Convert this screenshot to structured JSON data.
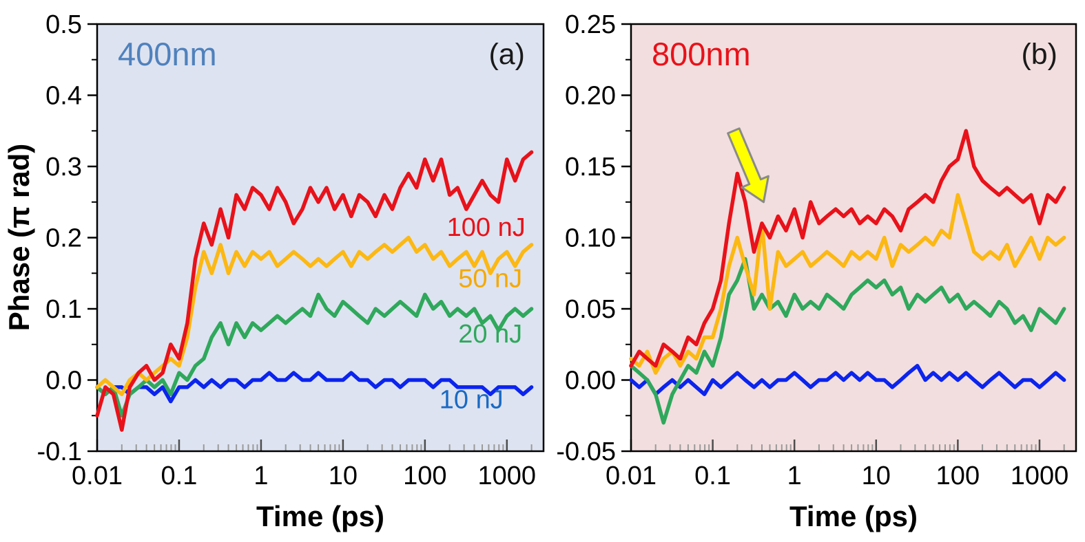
{
  "chart_data": [
    {
      "type": "line",
      "panel": "a",
      "title": "400nm",
      "title_color": "#4f81bd",
      "panel_tag": "(a)",
      "xlabel": "Time (ps)",
      "ylabel": "Phase (π rad)",
      "x_scale": "log",
      "grid": false,
      "background": "#dde3f0",
      "xlim": [
        0.01,
        2800
      ],
      "ylim": [
        -0.1,
        0.5
      ],
      "x_ticks": [
        0.01,
        0.1,
        1,
        10,
        100,
        1000
      ],
      "x_tick_labels": [
        "0.01",
        "0.1",
        "1",
        "10",
        "100",
        "1000"
      ],
      "y_ticks": [
        -0.1,
        0.0,
        0.1,
        0.2,
        0.3,
        0.4,
        0.5
      ],
      "y_tick_labels": [
        "-0.1",
        "0.0",
        "0.1",
        "0.2",
        "0.3",
        "0.4",
        "0.5"
      ],
      "y_minor_step": 0.05,
      "x": [
        0.01,
        0.0126,
        0.0158,
        0.02,
        0.025,
        0.032,
        0.04,
        0.05,
        0.063,
        0.079,
        0.1,
        0.126,
        0.158,
        0.2,
        0.25,
        0.32,
        0.4,
        0.5,
        0.63,
        0.79,
        1,
        1.26,
        1.58,
        2,
        2.5,
        3.2,
        4,
        5,
        6.3,
        7.9,
        10,
        12.6,
        15.8,
        20,
        25,
        32,
        40,
        50,
        63,
        79,
        100,
        126,
        158,
        200,
        250,
        320,
        400,
        500,
        630,
        790,
        1000,
        1260,
        1580,
        2000
      ],
      "series": [
        {
          "name": "10 nJ",
          "color": "#0b24ee",
          "values": [
            -0.01,
            -0.02,
            -0.01,
            -0.01,
            -0.02,
            -0.01,
            -0.01,
            -0.02,
            -0.01,
            -0.03,
            -0.01,
            -0.01,
            0.0,
            -0.01,
            0.0,
            -0.01,
            0.0,
            0.0,
            -0.01,
            0.0,
            0.0,
            0.01,
            0.0,
            0.0,
            0.01,
            0.0,
            0.0,
            0.01,
            0.0,
            0.0,
            0.0,
            0.01,
            0.0,
            0.0,
            -0.01,
            0.0,
            0.0,
            -0.01,
            0.0,
            0.0,
            0.0,
            -0.01,
            0.0,
            0.0,
            -0.01,
            -0.01,
            -0.01,
            -0.01,
            -0.02,
            -0.01,
            -0.01,
            -0.01,
            -0.02,
            -0.01
          ]
        },
        {
          "name": "20 nJ",
          "color": "#2fa85c",
          "values": [
            -0.01,
            -0.02,
            -0.01,
            -0.05,
            -0.02,
            -0.01,
            0.0,
            -0.01,
            0.0,
            -0.02,
            0.01,
            0.0,
            0.02,
            0.03,
            0.06,
            0.08,
            0.05,
            0.08,
            0.06,
            0.08,
            0.07,
            0.08,
            0.09,
            0.08,
            0.09,
            0.1,
            0.09,
            0.12,
            0.1,
            0.09,
            0.11,
            0.1,
            0.09,
            0.08,
            0.1,
            0.09,
            0.1,
            0.11,
            0.1,
            0.09,
            0.12,
            0.1,
            0.11,
            0.09,
            0.1,
            0.09,
            0.1,
            0.08,
            0.09,
            0.07,
            0.09,
            0.1,
            0.09,
            0.1
          ]
        },
        {
          "name": "50 nJ",
          "color": "#fcb813",
          "values": [
            -0.01,
            0.0,
            -0.01,
            -0.02,
            0.0,
            0.01,
            0.0,
            0.01,
            0.02,
            0.03,
            0.02,
            0.06,
            0.13,
            0.18,
            0.15,
            0.19,
            0.15,
            0.18,
            0.16,
            0.18,
            0.17,
            0.18,
            0.16,
            0.17,
            0.18,
            0.17,
            0.16,
            0.17,
            0.16,
            0.17,
            0.18,
            0.16,
            0.18,
            0.17,
            0.18,
            0.19,
            0.18,
            0.19,
            0.2,
            0.18,
            0.19,
            0.17,
            0.18,
            0.16,
            0.17,
            0.18,
            0.16,
            0.18,
            0.15,
            0.17,
            0.18,
            0.16,
            0.18,
            0.19
          ]
        },
        {
          "name": "100 nJ",
          "color": "#e8121a",
          "values": [
            -0.05,
            -0.01,
            -0.02,
            -0.07,
            -0.01,
            0.01,
            0.02,
            0.0,
            0.01,
            0.05,
            0.03,
            0.08,
            0.17,
            0.22,
            0.19,
            0.24,
            0.2,
            0.26,
            0.24,
            0.27,
            0.26,
            0.24,
            0.27,
            0.25,
            0.22,
            0.24,
            0.27,
            0.25,
            0.27,
            0.24,
            0.26,
            0.23,
            0.26,
            0.25,
            0.23,
            0.26,
            0.24,
            0.27,
            0.29,
            0.27,
            0.31,
            0.28,
            0.31,
            0.26,
            0.27,
            0.24,
            0.26,
            0.28,
            0.26,
            0.25,
            0.31,
            0.28,
            0.31,
            0.32
          ]
        }
      ],
      "labels": [
        {
          "text": "100 nJ",
          "color": "#e8121a",
          "x": 185,
          "y": 0.215
        },
        {
          "text": "50 nJ",
          "color": "#f5a800",
          "x": 255,
          "y": 0.143
        },
        {
          "text": "20 nJ",
          "color": "#2fa85c",
          "x": 255,
          "y": 0.065
        },
        {
          "text": "10 nJ",
          "color": "#1a6ac4",
          "x": 150,
          "y": -0.027
        }
      ],
      "annotations": []
    },
    {
      "type": "line",
      "panel": "b",
      "title": "800nm",
      "title_color": "#e8121a",
      "panel_tag": "(b)",
      "xlabel": "Time (ps)",
      "ylabel": "",
      "x_scale": "log",
      "grid": false,
      "background": "#f2dede",
      "xlim": [
        0.01,
        2800
      ],
      "ylim": [
        -0.05,
        0.25
      ],
      "x_ticks": [
        0.01,
        0.1,
        1,
        10,
        100,
        1000
      ],
      "x_tick_labels": [
        "0.01",
        "0.1",
        "1",
        "10",
        "100",
        "1000"
      ],
      "y_ticks": [
        -0.05,
        0.0,
        0.05,
        0.1,
        0.15,
        0.2,
        0.25
      ],
      "y_tick_labels": [
        "-0.05",
        "0.00",
        "0.05",
        "0.10",
        "0.15",
        "0.20",
        "0.25"
      ],
      "y_minor_step": 0.025,
      "x": [
        0.01,
        0.0126,
        0.0158,
        0.02,
        0.025,
        0.032,
        0.04,
        0.05,
        0.063,
        0.079,
        0.1,
        0.126,
        0.158,
        0.2,
        0.25,
        0.32,
        0.4,
        0.5,
        0.63,
        0.79,
        1,
        1.26,
        1.58,
        2,
        2.5,
        3.2,
        4,
        5,
        6.3,
        7.9,
        10,
        12.6,
        15.8,
        20,
        25,
        32,
        40,
        50,
        63,
        79,
        100,
        126,
        158,
        200,
        250,
        320,
        400,
        500,
        630,
        790,
        1000,
        1260,
        1580,
        2000
      ],
      "series": [
        {
          "name": "10 nJ",
          "color": "#0b24ee",
          "values": [
            0.0,
            -0.005,
            0.0,
            -0.01,
            -0.005,
            0.0,
            -0.005,
            0.0,
            -0.005,
            -0.01,
            0.0,
            -0.005,
            0.0,
            0.005,
            0.0,
            -0.005,
            0.0,
            -0.005,
            0.0,
            0.0,
            0.005,
            0.0,
            -0.005,
            0.0,
            0.0,
            0.005,
            0.0,
            0.005,
            0.0,
            0.005,
            0.0,
            0.0,
            -0.005,
            0.0,
            0.005,
            0.01,
            0.0,
            0.005,
            0.0,
            0.005,
            0.0,
            0.005,
            0.0,
            -0.005,
            0.0,
            0.005,
            0.0,
            -0.005,
            0.0,
            0.0,
            -0.005,
            0.0,
            0.005,
            0.0
          ]
        },
        {
          "name": "20 nJ",
          "color": "#2fa85c",
          "values": [
            0.01,
            0.005,
            0.0,
            -0.01,
            -0.03,
            -0.01,
            0.0,
            0.01,
            0.005,
            0.02,
            0.01,
            0.03,
            0.06,
            0.07,
            0.085,
            0.05,
            0.06,
            0.05,
            0.055,
            0.045,
            0.06,
            0.05,
            0.055,
            0.05,
            0.06,
            0.055,
            0.05,
            0.06,
            0.065,
            0.07,
            0.065,
            0.07,
            0.06,
            0.065,
            0.05,
            0.06,
            0.055,
            0.06,
            0.065,
            0.055,
            0.06,
            0.05,
            0.055,
            0.05,
            0.045,
            0.055,
            0.05,
            0.04,
            0.045,
            0.035,
            0.05,
            0.045,
            0.04,
            0.05
          ]
        },
        {
          "name": "50 nJ",
          "color": "#fcb813",
          "values": [
            0.015,
            0.01,
            0.02,
            0.005,
            0.015,
            0.02,
            0.01,
            0.02,
            0.015,
            0.03,
            0.03,
            0.05,
            0.08,
            0.1,
            0.08,
            0.06,
            0.11,
            0.05,
            0.09,
            0.08,
            0.085,
            0.09,
            0.08,
            0.085,
            0.09,
            0.085,
            0.08,
            0.09,
            0.085,
            0.09,
            0.085,
            0.1,
            0.08,
            0.095,
            0.09,
            0.095,
            0.1,
            0.095,
            0.105,
            0.1,
            0.13,
            0.11,
            0.09,
            0.085,
            0.09,
            0.085,
            0.095,
            0.08,
            0.09,
            0.1,
            0.085,
            0.1,
            0.095,
            0.1
          ]
        },
        {
          "name": "100 nJ",
          "color": "#e8121a",
          "values": [
            0.01,
            0.02,
            0.015,
            0.01,
            0.025,
            0.02,
            0.015,
            0.03,
            0.025,
            0.04,
            0.05,
            0.07,
            0.11,
            0.145,
            0.125,
            0.09,
            0.11,
            0.1,
            0.115,
            0.105,
            0.12,
            0.1,
            0.125,
            0.11,
            0.115,
            0.12,
            0.115,
            0.12,
            0.11,
            0.115,
            0.11,
            0.12,
            0.115,
            0.105,
            0.12,
            0.125,
            0.13,
            0.125,
            0.14,
            0.15,
            0.155,
            0.175,
            0.15,
            0.14,
            0.135,
            0.13,
            0.135,
            0.13,
            0.125,
            0.13,
            0.11,
            0.13,
            0.125,
            0.135
          ]
        }
      ],
      "labels": [],
      "annotations": [
        {
          "type": "arrow",
          "from": {
            "x": 0.18,
            "y": 0.175
          },
          "to": {
            "x": 0.42,
            "y": 0.125
          },
          "fill": "#ffff00",
          "stroke": "#8a8a8a"
        }
      ]
    }
  ]
}
